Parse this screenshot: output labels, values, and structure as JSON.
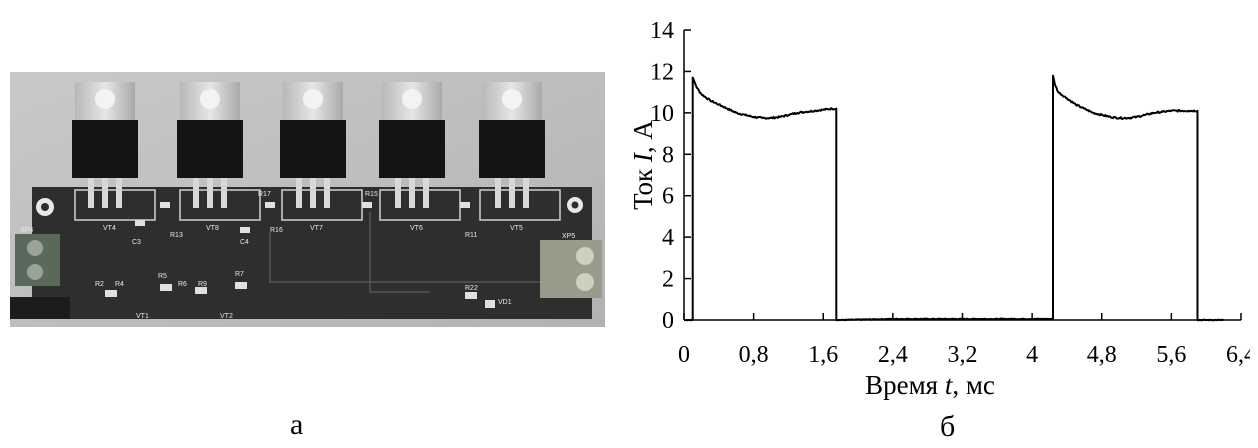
{
  "figure": {
    "caption_a": "а",
    "caption_b": "б"
  },
  "photo": {
    "description_icon": "pcb-board-photo",
    "labels": {
      "xp4": "XP4",
      "xp5": "XP5",
      "vt4": "VT4",
      "vt8": "VT8",
      "vt7": "VT7",
      "vt6": "VT6",
      "vt5": "VT5",
      "vt1": "VT1",
      "vt2": "VT2",
      "vd1": "VD1",
      "c3": "C3",
      "c4": "C4",
      "r2": "R2",
      "r4": "R4",
      "r5": "R5",
      "r6": "R6",
      "r7": "R7",
      "r9": "R9",
      "r11": "R11",
      "r13": "R13",
      "r15": "R15",
      "r16": "R16",
      "r17": "R17",
      "r22": "R22"
    }
  },
  "chart_data": {
    "type": "line",
    "title": "",
    "xlabel_prefix": "Время ",
    "xlabel_var": "t",
    "xlabel_unit": ", мс",
    "ylabel_prefix": "Ток ",
    "ylabel_var": "I",
    "ylabel_unit": ", А",
    "xlim": [
      0,
      6.4
    ],
    "ylim": [
      0,
      14
    ],
    "xticks": [
      0,
      0.8,
      1.6,
      2.4,
      3.2,
      4,
      4.8,
      5.6,
      6.4
    ],
    "xtick_labels": [
      "0",
      "0,8",
      "1,6",
      "2,4",
      "3,2",
      "4",
      "4,8",
      "5,6",
      "6,4"
    ],
    "yticks": [
      0,
      2,
      4,
      6,
      8,
      10,
      12,
      14
    ],
    "ytick_labels": [
      "0",
      "2",
      "4",
      "6",
      "8",
      "10",
      "12",
      "14"
    ],
    "grid": false,
    "series": [
      {
        "color": "#000000",
        "x": [
          0,
          0.05,
          0.1,
          0.1,
          0.12,
          0.15,
          0.2,
          0.3,
          0.4,
          0.5,
          0.6,
          0.7,
          0.8,
          0.9,
          1.0,
          1.1,
          1.2,
          1.3,
          1.4,
          1.5,
          1.6,
          1.7,
          1.75,
          1.75,
          1.8,
          2.4,
          3.2,
          4.0,
          4.2,
          4.24,
          4.24,
          4.26,
          4.3,
          4.4,
          4.5,
          4.6,
          4.7,
          4.8,
          4.9,
          5.0,
          5.1,
          5.2,
          5.3,
          5.4,
          5.5,
          5.6,
          5.8,
          5.9,
          5.9,
          6.0,
          6.2
        ],
        "y": [
          0,
          0,
          0,
          11.7,
          11.5,
          11.2,
          10.9,
          10.6,
          10.4,
          10.2,
          10.0,
          9.9,
          9.8,
          9.75,
          9.75,
          9.8,
          9.9,
          10.0,
          10.05,
          10.1,
          10.15,
          10.2,
          10.2,
          0,
          0,
          0.05,
          0.05,
          0.05,
          0.05,
          0.05,
          11.8,
          11.4,
          11.0,
          10.7,
          10.4,
          10.2,
          10.0,
          9.9,
          9.8,
          9.75,
          9.75,
          9.8,
          9.9,
          10.0,
          10.05,
          10.1,
          10.1,
          10.1,
          0,
          0,
          0
        ]
      }
    ]
  }
}
